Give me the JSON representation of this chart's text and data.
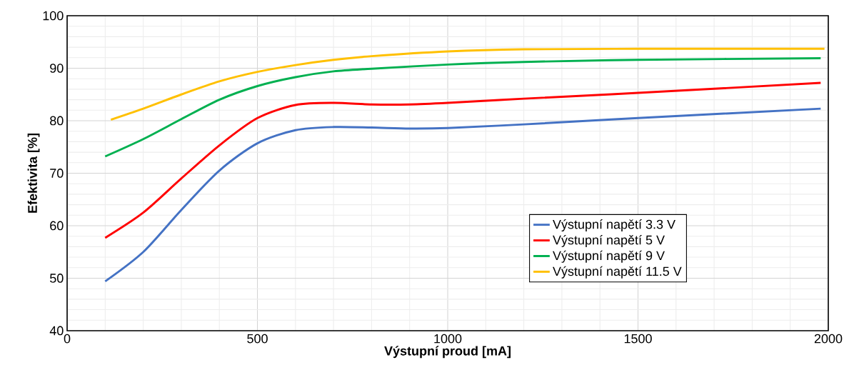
{
  "chart_data": {
    "type": "line",
    "xlabel": "Výstupní proud [mA]",
    "ylabel": "Efektivita [%]",
    "xlim": [
      0,
      2000
    ],
    "xticks": [
      0,
      500,
      1000,
      1500,
      2000
    ],
    "ylim": [
      40,
      100
    ],
    "yticks": [
      40,
      50,
      60,
      70,
      80,
      90,
      100
    ],
    "grid": true,
    "legend": "bottom right",
    "marker": "none",
    "line_style": "solid",
    "series": [
      {
        "name": "Výstupní napětí 3.3 V",
        "color": "#4472c4",
        "x": [
          100,
          200,
          300,
          400,
          500,
          600,
          700,
          800,
          900,
          1000,
          1200,
          1500,
          1980
        ],
        "values": [
          49.4,
          55,
          63,
          70.5,
          75.7,
          78.2,
          78.8,
          78.7,
          78.5,
          78.6,
          79.3,
          80.5,
          82.3
        ]
      },
      {
        "name": "Výstupní napětí 5 V",
        "color": "#ff0000",
        "x": [
          100,
          200,
          300,
          400,
          500,
          600,
          700,
          800,
          900,
          1000,
          1200,
          1500,
          1980
        ],
        "values": [
          57.7,
          62.5,
          69,
          75.3,
          80.5,
          83,
          83.4,
          83.1,
          83.1,
          83.4,
          84.2,
          85.3,
          87.2
        ]
      },
      {
        "name": "Výstupní napětí 9 V",
        "color": "#00b050",
        "x": [
          100,
          200,
          300,
          400,
          500,
          600,
          700,
          800,
          1000,
          1200,
          1500,
          1980
        ],
        "values": [
          73.2,
          76.5,
          80.3,
          84,
          86.6,
          88.3,
          89.4,
          89.9,
          90.7,
          91.2,
          91.6,
          91.9
        ]
      },
      {
        "name": "Výstupní napětí 11.5 V",
        "color": "#ffc000",
        "x": [
          115,
          200,
          300,
          400,
          500,
          600,
          700,
          800,
          1000,
          1200,
          1500,
          1990
        ],
        "values": [
          80.2,
          82.3,
          85,
          87.5,
          89.3,
          90.6,
          91.6,
          92.3,
          93.2,
          93.6,
          93.7,
          93.7
        ]
      }
    ]
  }
}
